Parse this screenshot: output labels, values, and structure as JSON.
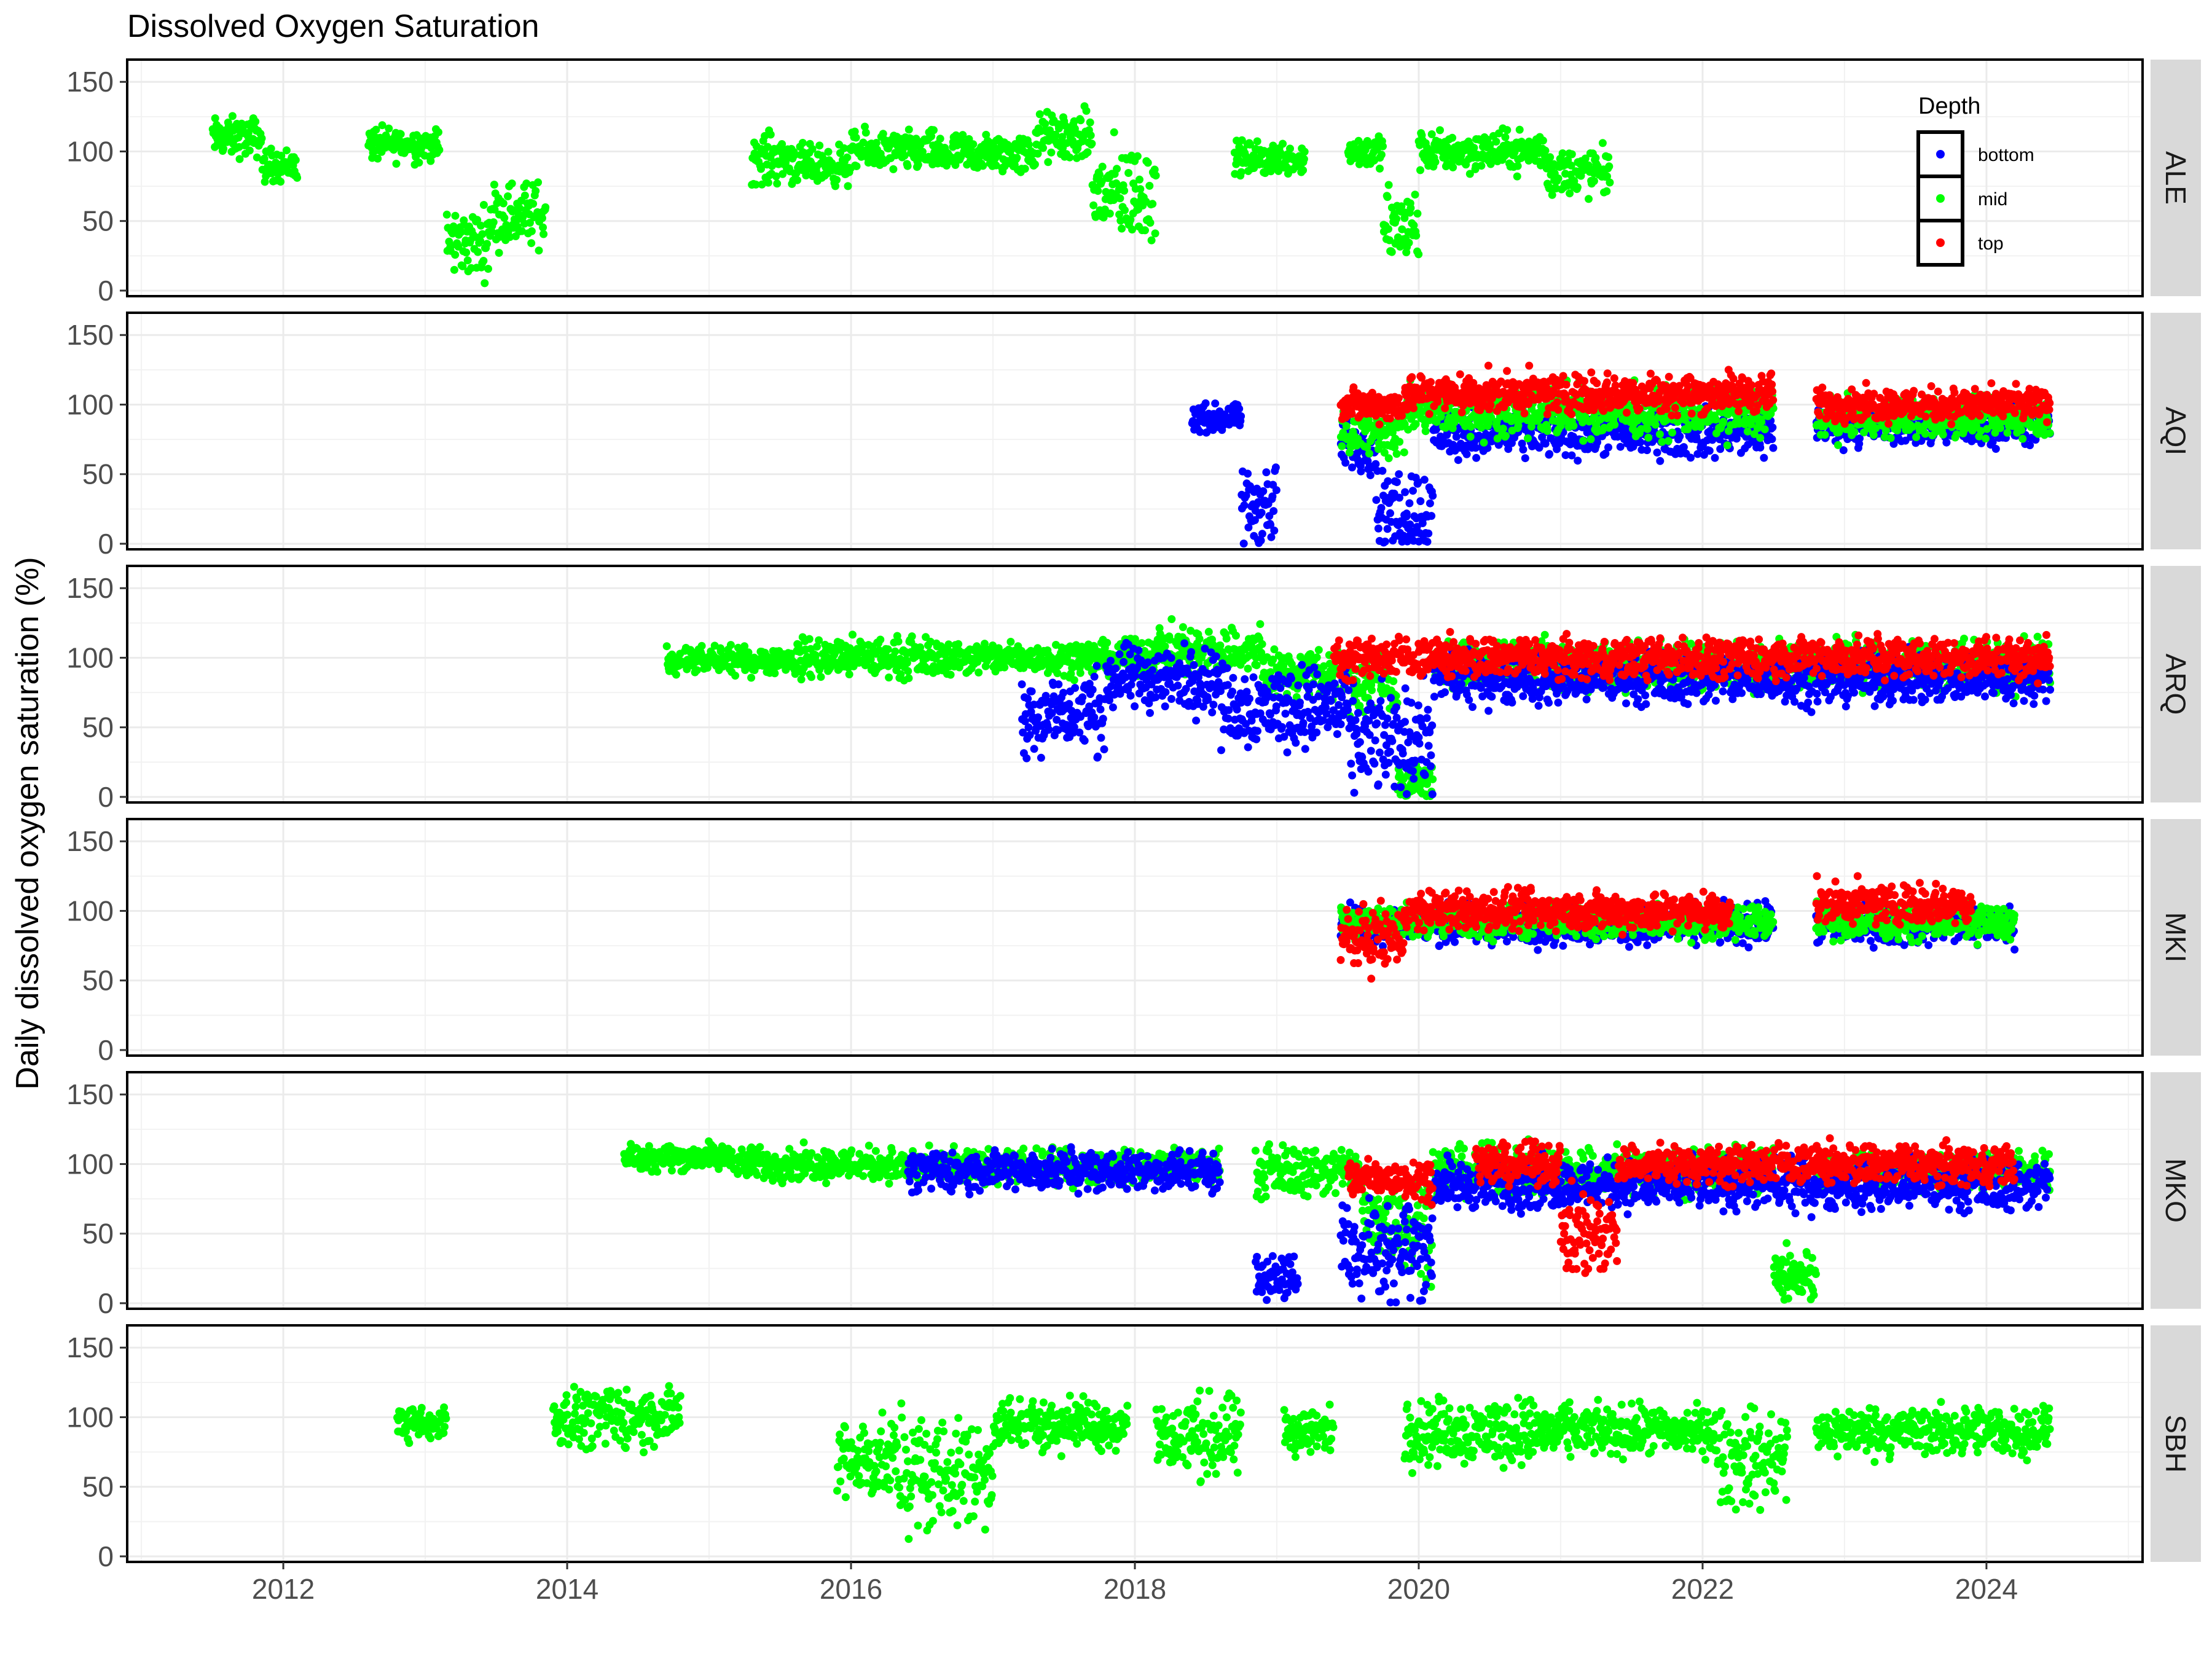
{
  "chart_data": {
    "type": "scatter",
    "title": "Dissolved Oxygen Saturation",
    "ylabel": "Daily dissolved oxygen saturation (%)",
    "xlabel": "",
    "xlim": [
      2010.9,
      2025.1
    ],
    "ylim": [
      -4,
      166
    ],
    "x_ticks": [
      2012,
      2014,
      2016,
      2018,
      2020,
      2022,
      2024
    ],
    "y_ticks": [
      0,
      50,
      100,
      150
    ],
    "grid": true,
    "legend": {
      "title": "Depth",
      "placement": "top-right inside first panel",
      "entries": [
        {
          "name": "bottom",
          "color": "#0000ff"
        },
        {
          "name": "mid",
          "color": "#00ff00"
        },
        {
          "name": "top",
          "color": "#ff0000"
        }
      ]
    },
    "colors": {
      "bottom": "#0000ff",
      "mid": "#00ff00",
      "top": "#ff0000"
    },
    "panels": [
      {
        "site": "ALE",
        "series": [
          {
            "name": "mid",
            "segments": [
              [
                2011.5,
                2011.85,
                110,
                12
              ],
              [
                2011.85,
                2012.1,
                90,
                10
              ],
              [
                2012.6,
                2013.1,
                105,
                10
              ],
              [
                2013.15,
                2013.45,
                35,
                20
              ],
              [
                2013.45,
                2013.85,
                55,
                20
              ],
              [
                2015.3,
                2015.6,
                95,
                15
              ],
              [
                2015.6,
                2016.0,
                90,
                12
              ],
              [
                2016.0,
                2016.6,
                100,
                12
              ],
              [
                2016.6,
                2017.3,
                98,
                12
              ],
              [
                2017.3,
                2017.7,
                110,
                15
              ],
              [
                2017.7,
                2018.15,
                70,
                30
              ],
              [
                2018.7,
                2019.2,
                95,
                10
              ],
              [
                2019.5,
                2019.75,
                100,
                10
              ],
              [
                2019.75,
                2020.0,
                45,
                25
              ],
              [
                2020.0,
                2020.9,
                100,
                12
              ],
              [
                2020.9,
                2021.35,
                85,
                15
              ]
            ]
          }
        ]
      },
      {
        "site": "AQI",
        "series": [
          {
            "name": "bottom",
            "segments": [
              [
                2018.4,
                2018.75,
                90,
                8
              ],
              [
                2018.75,
                2019.0,
                25,
                25
              ],
              [
                2019.45,
                2019.7,
                70,
                15
              ],
              [
                2019.7,
                2020.1,
                25,
                25
              ],
              [
                2020.1,
                2022.5,
                80,
                15
              ],
              [
                2022.8,
                2024.45,
                85,
                12
              ]
            ]
          },
          {
            "name": "mid",
            "segments": [
              [
                2019.45,
                2019.9,
                80,
                15
              ],
              [
                2019.9,
                2022.5,
                95,
                15
              ],
              [
                2022.8,
                2024.45,
                90,
                12
              ]
            ]
          },
          {
            "name": "top",
            "segments": [
              [
                2019.45,
                2019.9,
                100,
                10
              ],
              [
                2019.9,
                2022.5,
                108,
                12
              ],
              [
                2022.8,
                2024.45,
                100,
                10
              ]
            ]
          }
        ]
      },
      {
        "site": "ARQ",
        "series": [
          {
            "name": "mid",
            "segments": [
              [
                2014.7,
                2015.6,
                98,
                8
              ],
              [
                2015.6,
                2016.6,
                100,
                12
              ],
              [
                2016.6,
                2018.1,
                100,
                10
              ],
              [
                2018.1,
                2018.9,
                105,
                15
              ],
              [
                2018.9,
                2019.5,
                90,
                15
              ],
              [
                2019.5,
                2019.85,
                80,
                20
              ],
              [
                2019.85,
                2020.1,
                10,
                12
              ],
              [
                2020.1,
                2024.45,
                95,
                15
              ]
            ]
          },
          {
            "name": "bottom",
            "segments": [
              [
                2017.2,
                2017.8,
                60,
                25
              ],
              [
                2017.8,
                2018.6,
                85,
                20
              ],
              [
                2018.6,
                2019.5,
                65,
                25
              ],
              [
                2019.5,
                2020.1,
                40,
                30
              ],
              [
                2020.1,
                2024.45,
                85,
                15
              ]
            ]
          },
          {
            "name": "top",
            "segments": [
              [
                2019.4,
                2024.45,
                100,
                12
              ]
            ]
          }
        ]
      },
      {
        "site": "MKI",
        "series": [
          {
            "name": "bottom",
            "segments": [
              [
                2019.45,
                2022.5,
                90,
                12
              ],
              [
                2022.8,
                2024.2,
                90,
                12
              ]
            ]
          },
          {
            "name": "mid",
            "segments": [
              [
                2019.45,
                2022.5,
                92,
                10
              ],
              [
                2022.8,
                2024.2,
                92,
                10
              ]
            ]
          },
          {
            "name": "top",
            "segments": [
              [
                2019.45,
                2019.9,
                80,
                18
              ],
              [
                2019.9,
                2022.2,
                100,
                12
              ],
              [
                2022.8,
                2023.9,
                105,
                12
              ]
            ]
          }
        ]
      },
      {
        "site": "MKO",
        "series": [
          {
            "name": "mid",
            "segments": [
              [
                2014.4,
                2015.2,
                105,
                8
              ],
              [
                2015.2,
                2016.3,
                100,
                10
              ],
              [
                2016.3,
                2018.6,
                98,
                10
              ],
              [
                2018.85,
                2019.6,
                95,
                15
              ],
              [
                2019.6,
                2020.1,
                60,
                30
              ],
              [
                2020.1,
                2022.5,
                95,
                15
              ],
              [
                2022.5,
                2022.8,
                20,
                15
              ],
              [
                2022.8,
                2024.45,
                95,
                12
              ]
            ]
          },
          {
            "name": "bottom",
            "segments": [
              [
                2016.4,
                2018.6,
                95,
                12
              ],
              [
                2018.85,
                2019.15,
                20,
                15
              ],
              [
                2019.45,
                2020.1,
                40,
                30
              ],
              [
                2020.1,
                2024.45,
                85,
                15
              ]
            ]
          },
          {
            "name": "top",
            "segments": [
              [
                2019.5,
                2020.1,
                90,
                12
              ],
              [
                2020.4,
                2021.0,
                100,
                12
              ],
              [
                2021.0,
                2021.4,
                50,
                25
              ],
              [
                2021.4,
                2024.2,
                100,
                12
              ]
            ]
          }
        ]
      },
      {
        "site": "SBH",
        "series": [
          {
            "name": "mid",
            "segments": [
              [
                2012.8,
                2013.15,
                95,
                10
              ],
              [
                2013.9,
                2014.8,
                100,
                18
              ],
              [
                2015.9,
                2016.3,
                70,
                25
              ],
              [
                2016.3,
                2017.0,
                60,
                35
              ],
              [
                2017.0,
                2017.95,
                95,
                15
              ],
              [
                2018.15,
                2018.75,
                85,
                25
              ],
              [
                2019.05,
                2019.4,
                90,
                15
              ],
              [
                2019.9,
                2020.9,
                90,
                20
              ],
              [
                2020.9,
                2022.1,
                90,
                15
              ],
              [
                2022.1,
                2022.6,
                70,
                30
              ],
              [
                2022.8,
                2023.8,
                90,
                15
              ],
              [
                2023.8,
                2024.45,
                90,
                15
              ]
            ]
          }
        ]
      }
    ]
  }
}
